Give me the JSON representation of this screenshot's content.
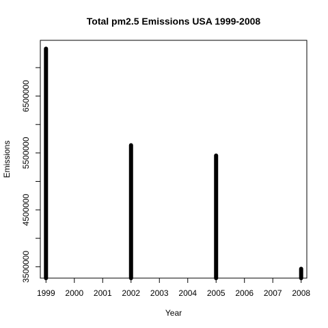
{
  "chart_data": {
    "type": "bar",
    "title": "Total pm2.5 Emissions USA 1999-2008",
    "xlabel": "Year",
    "ylabel": "Emissions",
    "x": [
      1999,
      2002,
      2005,
      2008
    ],
    "values": [
      7332967,
      5635780,
      5454703,
      3464206
    ],
    "xticks": [
      "1999",
      "2000",
      "2001",
      "2002",
      "2003",
      "2004",
      "2005",
      "2006",
      "2007",
      "2008"
    ],
    "xlim": [
      1998.8,
      2008.2
    ],
    "yticks": [
      3500000,
      4000000,
      4500000,
      5000000,
      5500000,
      6000000,
      6500000,
      7000000
    ],
    "yticklabels": [
      "3500000",
      "",
      "4500000",
      "",
      "5500000",
      "",
      "6500000",
      ""
    ],
    "ylim": [
      3300000,
      7480000
    ],
    "grid": false,
    "color": "#000000"
  }
}
